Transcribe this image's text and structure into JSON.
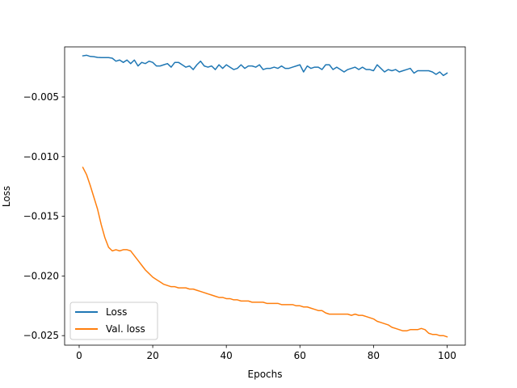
{
  "chart_data": {
    "type": "line",
    "title": "",
    "xlabel": "Epochs",
    "ylabel": "Loss",
    "xlim": [
      -3.95,
      104.95
    ],
    "ylim": [
      -0.0258,
      -0.0008
    ],
    "xticks": [
      0,
      20,
      40,
      60,
      80,
      100
    ],
    "xtick_labels": [
      "0",
      "20",
      "40",
      "60",
      "80",
      "100"
    ],
    "yticks": [
      -0.005,
      -0.01,
      -0.015,
      -0.02,
      -0.025
    ],
    "ytick_labels": [
      "−0.005",
      "−0.010",
      "−0.015",
      "−0.020",
      "−0.025"
    ],
    "grid": false,
    "legend_position": "lower-left",
    "x": [
      1,
      2,
      3,
      4,
      5,
      6,
      7,
      8,
      9,
      10,
      11,
      12,
      13,
      14,
      15,
      16,
      17,
      18,
      19,
      20,
      21,
      22,
      23,
      24,
      25,
      26,
      27,
      28,
      29,
      30,
      31,
      32,
      33,
      34,
      35,
      36,
      37,
      38,
      39,
      40,
      41,
      42,
      43,
      44,
      45,
      46,
      47,
      48,
      49,
      50,
      51,
      52,
      53,
      54,
      55,
      56,
      57,
      58,
      59,
      60,
      61,
      62,
      63,
      64,
      65,
      66,
      67,
      68,
      69,
      70,
      71,
      72,
      73,
      74,
      75,
      76,
      77,
      78,
      79,
      80,
      81,
      82,
      83,
      84,
      85,
      86,
      87,
      88,
      89,
      90,
      91,
      92,
      93,
      94,
      95,
      96,
      97,
      98,
      99,
      100
    ],
    "series": [
      {
        "name": "Loss",
        "color": "#1f77b4",
        "values": [
          -0.00155,
          -0.0015,
          -0.0016,
          -0.00162,
          -0.00168,
          -0.0017,
          -0.0017,
          -0.0017,
          -0.00175,
          -0.002,
          -0.0019,
          -0.0021,
          -0.0019,
          -0.0022,
          -0.0019,
          -0.0024,
          -0.0021,
          -0.0022,
          -0.002,
          -0.0021,
          -0.0024,
          -0.0024,
          -0.0023,
          -0.0022,
          -0.0025,
          -0.0021,
          -0.0021,
          -0.0023,
          -0.0025,
          -0.0024,
          -0.0027,
          -0.0023,
          -0.002,
          -0.0024,
          -0.0025,
          -0.0024,
          -0.0027,
          -0.0023,
          -0.0026,
          -0.0023,
          -0.0025,
          -0.0027,
          -0.0026,
          -0.0023,
          -0.0026,
          -0.0024,
          -0.0024,
          -0.0025,
          -0.0023,
          -0.0027,
          -0.0026,
          -0.0026,
          -0.0025,
          -0.0026,
          -0.0024,
          -0.0026,
          -0.0026,
          -0.0025,
          -0.0024,
          -0.0023,
          -0.0029,
          -0.0024,
          -0.0026,
          -0.0025,
          -0.0025,
          -0.0027,
          -0.0023,
          -0.0023,
          -0.0027,
          -0.0025,
          -0.0027,
          -0.0029,
          -0.0027,
          -0.0026,
          -0.0025,
          -0.0027,
          -0.0025,
          -0.0027,
          -0.0027,
          -0.0028,
          -0.0023,
          -0.0026,
          -0.0029,
          -0.0027,
          -0.0028,
          -0.0027,
          -0.0029,
          -0.0028,
          -0.0027,
          -0.0026,
          -0.003,
          -0.0028,
          -0.0028,
          -0.0028,
          -0.0028,
          -0.0029,
          -0.0031,
          -0.0029,
          -0.0032,
          -0.003
        ]
      },
      {
        "name": "Val. loss",
        "color": "#ff7f0e",
        "values": [
          -0.0109,
          -0.0115,
          -0.0124,
          -0.0134,
          -0.0144,
          -0.0157,
          -0.0168,
          -0.0176,
          -0.0179,
          -0.0178,
          -0.0179,
          -0.0178,
          -0.0178,
          -0.0179,
          -0.0183,
          -0.0187,
          -0.0191,
          -0.0195,
          -0.0198,
          -0.0201,
          -0.0203,
          -0.0205,
          -0.0207,
          -0.0208,
          -0.0209,
          -0.0209,
          -0.021,
          -0.021,
          -0.021,
          -0.0211,
          -0.0211,
          -0.0212,
          -0.0213,
          -0.0214,
          -0.0215,
          -0.0216,
          -0.0217,
          -0.0218,
          -0.0218,
          -0.0219,
          -0.0219,
          -0.022,
          -0.022,
          -0.0221,
          -0.0221,
          -0.0221,
          -0.0222,
          -0.0222,
          -0.0222,
          -0.0222,
          -0.0223,
          -0.0223,
          -0.0223,
          -0.0223,
          -0.0224,
          -0.0224,
          -0.0224,
          -0.0224,
          -0.0225,
          -0.0225,
          -0.0226,
          -0.0226,
          -0.0227,
          -0.0228,
          -0.0229,
          -0.0229,
          -0.0231,
          -0.0232,
          -0.0232,
          -0.0232,
          -0.0232,
          -0.0232,
          -0.0232,
          -0.0233,
          -0.0232,
          -0.0233,
          -0.0233,
          -0.0234,
          -0.0235,
          -0.0236,
          -0.0238,
          -0.0239,
          -0.024,
          -0.0241,
          -0.0243,
          -0.0244,
          -0.0245,
          -0.0246,
          -0.0246,
          -0.0245,
          -0.0245,
          -0.0245,
          -0.0244,
          -0.0245,
          -0.0248,
          -0.0249,
          -0.0249,
          -0.025,
          -0.025,
          -0.0251
        ]
      }
    ]
  }
}
